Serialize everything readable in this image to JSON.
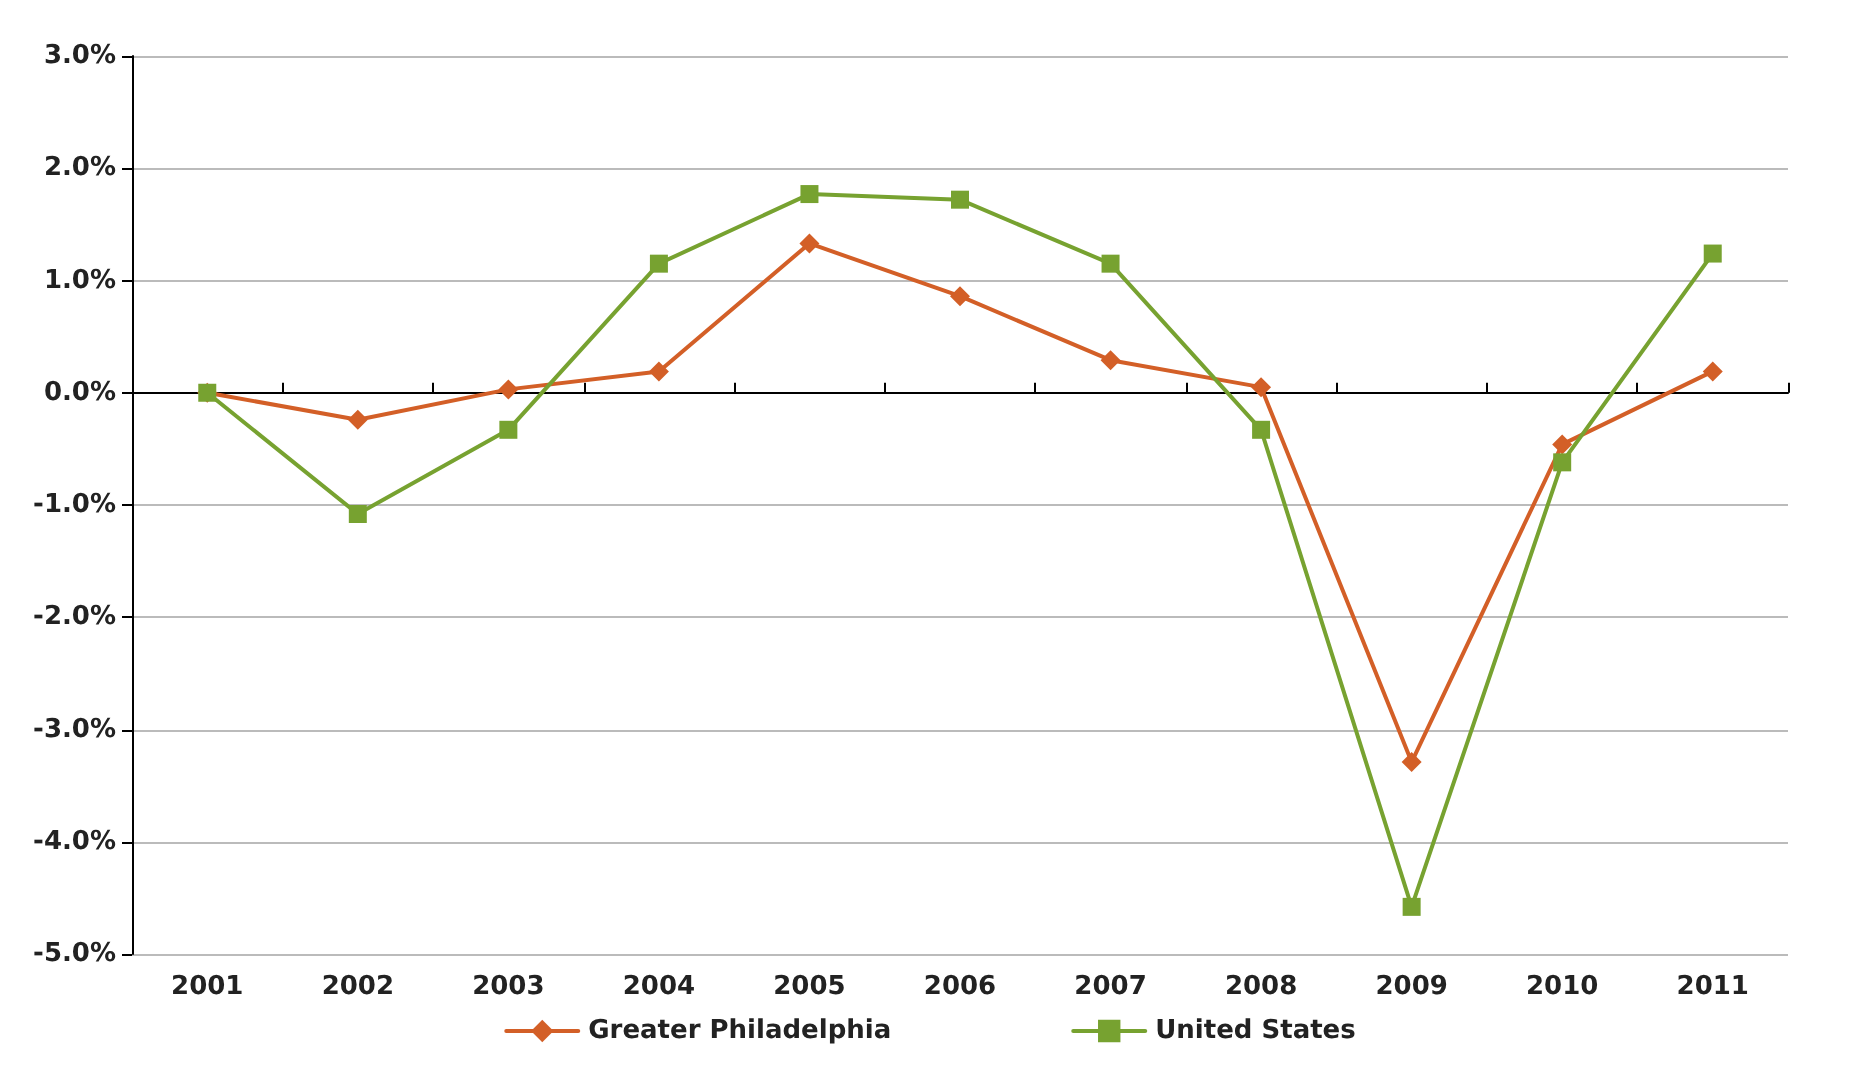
{
  "chart_data": {
    "type": "line",
    "categories": [
      "2001",
      "2002",
      "2003",
      "2004",
      "2005",
      "2006",
      "2007",
      "2008",
      "2009",
      "2010",
      "2011"
    ],
    "series": [
      {
        "name": "Greater Philadelphia",
        "color": "#d35f27",
        "marker": "diamond",
        "values": [
          0,
          -0.24,
          0.03,
          0.19,
          1.33,
          0.86,
          0.29,
          0.05,
          -3.29,
          -0.46,
          0.19
        ]
      },
      {
        "name": "United States",
        "color": "#77a230",
        "marker": "square",
        "values": [
          0,
          -1.08,
          -0.33,
          1.15,
          1.77,
          1.72,
          1.15,
          -0.33,
          -4.58,
          -0.62,
          1.24
        ]
      }
    ],
    "ylim": [
      -5,
      3
    ],
    "yticks": [
      {
        "value": -5,
        "label": "-5.0%"
      },
      {
        "value": -4,
        "label": "-4.0%"
      },
      {
        "value": -3,
        "label": "-3.0%"
      },
      {
        "value": -2,
        "label": "-2.0%"
      },
      {
        "value": -1,
        "label": "-1.0%"
      },
      {
        "value": 0,
        "label": "0.0%"
      },
      {
        "value": 1,
        "label": "1.0%"
      },
      {
        "value": 2,
        "label": "2.0%"
      },
      {
        "value": 3,
        "label": "3.0%"
      }
    ],
    "grid": "y",
    "legend": "bottom",
    "line_style": "solid"
  }
}
